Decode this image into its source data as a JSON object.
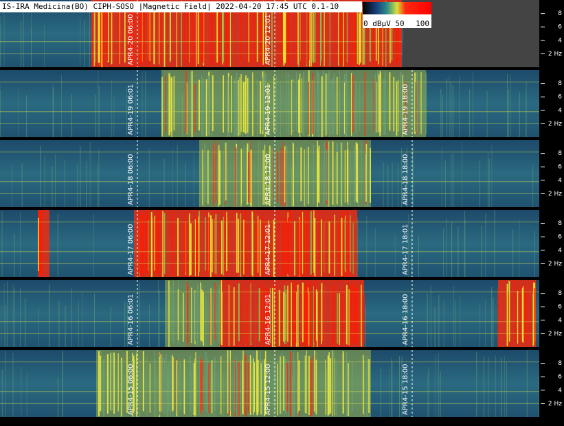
{
  "chart_data": {
    "type": "spectrogram",
    "title": "IS-IRA Medicina(BO) CIPH-SOSO |Magnetic Field| 2022-04-20 17:45 UTC 0.1-10",
    "colorbar_labels": [
      "0 dBµV 50",
      "100"
    ],
    "ylim": [
      0,
      10
    ],
    "yticks": [
      8,
      6,
      4,
      {
        "value": 2,
        "label": "2 Hz"
      }
    ],
    "panels": [
      {
        "time_labels": [
          "APR4-20 06:00",
          "APR4-20 12:01"
        ]
      },
      {
        "time_labels": [
          "APR4-19 06:01",
          "APR4-19 12:01",
          "APR4-19 18:00"
        ]
      },
      {
        "time_labels": [
          "APR4-18 06:00",
          "APR4-18 12:00",
          "APR4-18 18:00"
        ]
      },
      {
        "time_labels": [
          "APR4-17 06:00",
          "APR4-17 12:01",
          "APR4-17 18:01"
        ]
      },
      {
        "time_labels": [
          "APR4-16 06:01",
          "APR4-16 12:01",
          "APR4-16 18:00"
        ]
      },
      {
        "time_labels": [
          "APR4-15 06:00",
          "APR4-15 12:00",
          "APR4-15 18:00"
        ]
      }
    ]
  }
}
